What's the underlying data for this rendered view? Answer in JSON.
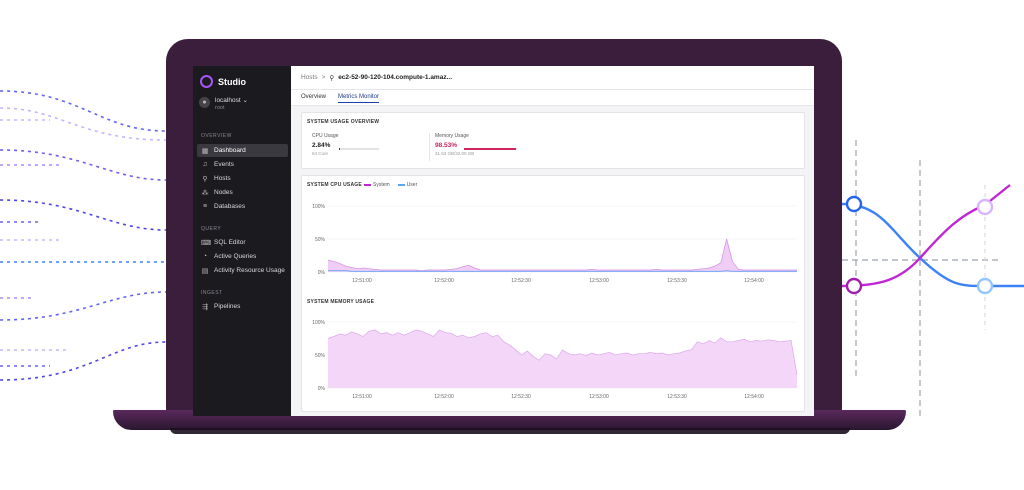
{
  "app": {
    "name": "Studio"
  },
  "account": {
    "host": "localhost",
    "user": "root"
  },
  "sidebar": {
    "sections": [
      {
        "label": "OVERVIEW",
        "items": [
          {
            "label": "Dashboard",
            "icon": "dashboard-icon",
            "active": true
          },
          {
            "label": "Events",
            "icon": "bell-icon"
          },
          {
            "label": "Hosts",
            "icon": "person-icon"
          },
          {
            "label": "Nodes",
            "icon": "nodes-icon"
          },
          {
            "label": "Databases",
            "icon": "database-icon"
          }
        ]
      },
      {
        "label": "QUERY",
        "items": [
          {
            "label": "SQL Editor",
            "icon": "code-icon"
          },
          {
            "label": "Active Queries",
            "icon": "gauge-icon"
          },
          {
            "label": "Activity Resource Usage",
            "icon": "chart-icon"
          }
        ]
      },
      {
        "label": "INGEST",
        "items": [
          {
            "label": "Pipelines",
            "icon": "pipeline-icon"
          }
        ]
      }
    ]
  },
  "breadcrumb": {
    "root": "Hosts",
    "separator": ">",
    "host": "ec2-52-90-120-104.compute-1.amaz..."
  },
  "tabs": [
    {
      "label": "Overview"
    },
    {
      "label": "Metrics Monitor",
      "active": true
    }
  ],
  "overview": {
    "title": "SYSTEM USAGE OVERVIEW",
    "cpu": {
      "label": "CPU Usage",
      "value": "2.84%",
      "sub": "64 Core",
      "fraction": 0.0284
    },
    "memory": {
      "label": "Memory Usage",
      "value": "98.53%",
      "sub": "31.53 GB/32.00 GB",
      "fraction": 0.9853
    }
  },
  "colors": {
    "accent": "#a855f7",
    "system": "#c026d3",
    "user": "#60a5fa",
    "memory": "#d0245c",
    "sidebar": "#1b1a1f"
  },
  "chart_data": [
    {
      "type": "area",
      "title": "SYSTEM CPU USAGE",
      "yticks": [
        "100%",
        "50%",
        "0%"
      ],
      "xticks": [
        "12:51:00",
        "12:52:00",
        "12:52:30",
        "12:53:00",
        "12:53:30",
        "12:54:00"
      ],
      "ylim": [
        0,
        100
      ],
      "series": [
        {
          "name": "System",
          "color": "#c026d3",
          "values": [
            18,
            16,
            13,
            9,
            7,
            5,
            6,
            5,
            4,
            3,
            3,
            3,
            3,
            3,
            3,
            3,
            2,
            3,
            3,
            3,
            3,
            4,
            5,
            8,
            10,
            6,
            3,
            3,
            3,
            3,
            3,
            3,
            3,
            3,
            3,
            3,
            3,
            3,
            3,
            3,
            3,
            3,
            3,
            3,
            3,
            4,
            3,
            3,
            3,
            3,
            3,
            3,
            3,
            3,
            3,
            3,
            4,
            3,
            3,
            3,
            3,
            3,
            3,
            4,
            5,
            6,
            9,
            14,
            50,
            16,
            4,
            3,
            3,
            3,
            3,
            3,
            3,
            3,
            3,
            3,
            3
          ]
        },
        {
          "name": "User",
          "color": "#60a5fa",
          "values": [
            2,
            2,
            2,
            2,
            1,
            1,
            1,
            1,
            1,
            1,
            1,
            1,
            1,
            1,
            1,
            1,
            1,
            1,
            1,
            1,
            1,
            1,
            1,
            1,
            1,
            1,
            1,
            1,
            1,
            1,
            1,
            1,
            1,
            1,
            1,
            1,
            1,
            1,
            1,
            1,
            1,
            1,
            1,
            1,
            1,
            1,
            1,
            1,
            1,
            1,
            1,
            1,
            1,
            1,
            1,
            1,
            1,
            1,
            1,
            1,
            1,
            1,
            1,
            1,
            1,
            1,
            1,
            1,
            2,
            1,
            1,
            1,
            1,
            1,
            1,
            1,
            1,
            1,
            1,
            1,
            1
          ]
        }
      ]
    },
    {
      "type": "area",
      "title": "SYSTEM MEMORY USAGE",
      "yticks": [
        "100%",
        "50%",
        "0%"
      ],
      "xticks": [
        "12:51:00",
        "12:52:00",
        "12:52:30",
        "12:53:00",
        "12:53:30",
        "12:54:00"
      ],
      "ylim": [
        0,
        100
      ],
      "series": [
        {
          "name": "Memory",
          "values": [
            75,
            78,
            82,
            80,
            85,
            82,
            78,
            86,
            88,
            82,
            84,
            80,
            84,
            80,
            84,
            88,
            86,
            82,
            78,
            88,
            84,
            83,
            78,
            80,
            76,
            78,
            82,
            84,
            78,
            80,
            70,
            65,
            58,
            50,
            56,
            48,
            42,
            52,
            50,
            44,
            58,
            52,
            50,
            52,
            49,
            53,
            50,
            52,
            54,
            50,
            52,
            53,
            50,
            52,
            52,
            54,
            52,
            53,
            50,
            52,
            53,
            56,
            58,
            70,
            67,
            72,
            68,
            76,
            70,
            70,
            72,
            74,
            70,
            72,
            71,
            73,
            72,
            70,
            71,
            72,
            20
          ]
        }
      ]
    }
  ]
}
